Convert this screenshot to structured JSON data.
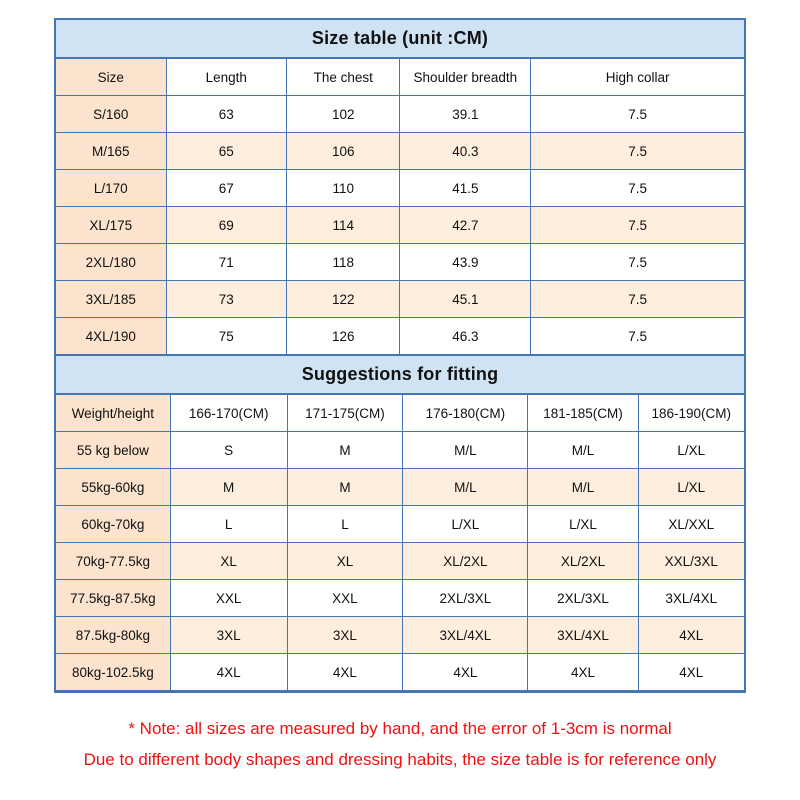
{
  "size_table": {
    "title": "Size table (unit :CM)",
    "columns": [
      "Size",
      "Length",
      "The chest",
      "Shoulder breadth",
      "High collar"
    ],
    "rows": [
      [
        "S/160",
        "63",
        "102",
        "39.1",
        "7.5"
      ],
      [
        "M/165",
        "65",
        "106",
        "40.3",
        "7.5"
      ],
      [
        "L/170",
        "67",
        "110",
        "41.5",
        "7.5"
      ],
      [
        "XL/175",
        "69",
        "114",
        "42.7",
        "7.5"
      ],
      [
        "2XL/180",
        "71",
        "118",
        "43.9",
        "7.5"
      ],
      [
        "3XL/185",
        "73",
        "122",
        "45.1",
        "7.5"
      ],
      [
        "4XL/190",
        "75",
        "126",
        "46.3",
        "7.5"
      ]
    ]
  },
  "fitting_table": {
    "title": "Suggestions for fitting",
    "columns": [
      "Weight/height",
      "166-170(CM)",
      "171-175(CM)",
      "176-180(CM)",
      "181-185(CM)",
      "186-190(CM)"
    ],
    "rows": [
      [
        "55 kg below",
        "S",
        "M",
        "M/L",
        "M/L",
        "L/XL"
      ],
      [
        "55kg-60kg",
        "M",
        "M",
        "M/L",
        "M/L",
        "L/XL"
      ],
      [
        "60kg-70kg",
        "L",
        "L",
        "L/XL",
        "L/XL",
        "XL/XXL"
      ],
      [
        "70kg-77.5kg",
        "XL",
        "XL",
        "XL/2XL",
        "XL/2XL",
        "XXL/3XL"
      ],
      [
        "77.5kg-87.5kg",
        "XXL",
        "XXL",
        "2XL/3XL",
        "2XL/3XL",
        "3XL/4XL"
      ],
      [
        "87.5kg-80kg",
        "3XL",
        "3XL",
        "3XL/4XL",
        "3XL/4XL",
        "4XL"
      ],
      [
        "80kg-102.5kg",
        "4XL",
        "4XL",
        "4XL",
        "4XL",
        "4XL"
      ]
    ]
  },
  "notes": {
    "line1": "* Note: all sizes are measured by hand, and the error of 1-3cm is normal",
    "line2": "Due to different body shapes and dressing habits, the size table is for reference only"
  },
  "colors": {
    "border": "#4576b4",
    "title_band_bg": "#cfe3f5",
    "first_column_bg": "#fbe3cd",
    "alt_row_bg": "#fdeede",
    "note_text": "#ee1111"
  }
}
